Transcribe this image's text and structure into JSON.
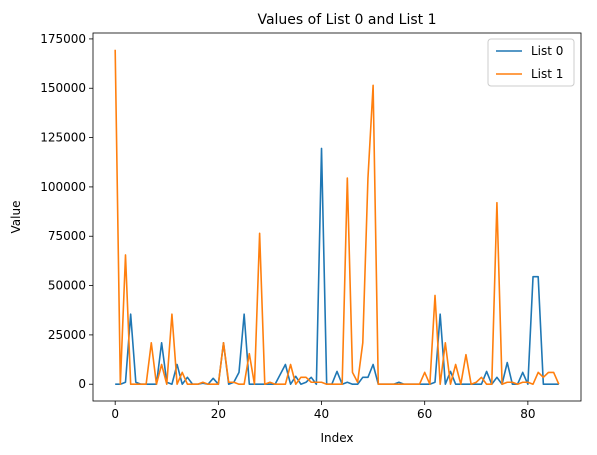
{
  "chart_data": {
    "type": "line",
    "title": "Values of List 0 and List 1",
    "xlabel": "Index",
    "ylabel": "Value",
    "xlim": [
      -4.3,
      90.3
    ],
    "ylim": [
      -8500,
      178000
    ],
    "xticks": [
      0,
      20,
      40,
      60,
      80
    ],
    "yticks": [
      0,
      25000,
      50000,
      75000,
      100000,
      125000,
      150000,
      175000
    ],
    "legend_position": "top-right",
    "grid": false,
    "series": [
      {
        "name": "List 0",
        "color": "#1f77b4",
        "values": [
          0,
          0,
          1000,
          35500,
          1000,
          0,
          0,
          0,
          0,
          21000,
          1000,
          0,
          10000,
          0,
          3500,
          0,
          0,
          500,
          0,
          3000,
          0,
          21000,
          0,
          1000,
          6000,
          35500,
          0,
          0,
          0,
          0,
          0,
          0,
          5000,
          10000,
          0,
          4000,
          0,
          1000,
          3500,
          0,
          119500,
          0,
          0,
          6500,
          0,
          1000,
          0,
          0,
          3500,
          3500,
          10000,
          0,
          0,
          0,
          0,
          1000,
          0,
          0,
          0,
          0,
          0,
          0,
          1000,
          35500,
          0,
          6500,
          0,
          0,
          0,
          0,
          0,
          0,
          6500,
          0,
          3500,
          0,
          11000,
          0,
          0,
          6000,
          0,
          54500,
          54500,
          0,
          0,
          0,
          0
        ]
      },
      {
        "name": "List 1",
        "color": "#ff7f0e",
        "values": [
          169500,
          0,
          65500,
          0,
          0,
          0,
          0,
          21000,
          0,
          10000,
          0,
          35500,
          0,
          6000,
          0,
          0,
          0,
          1000,
          0,
          0,
          0,
          21000,
          1000,
          1000,
          0,
          0,
          15500,
          0,
          76500,
          0,
          1000,
          0,
          0,
          0,
          10000,
          0,
          3500,
          3500,
          1000,
          1000,
          1000,
          0,
          0,
          0,
          0,
          104500,
          6000,
          1000,
          21000,
          104500,
          151500,
          0,
          0,
          0,
          0,
          0,
          0,
          0,
          0,
          0,
          6000,
          0,
          45000,
          0,
          21000,
          0,
          10000,
          0,
          15000,
          0,
          1000,
          3500,
          0,
          0,
          92000,
          0,
          1000,
          1000,
          0,
          1000,
          1000,
          0,
          6000,
          3500,
          6000,
          6000,
          0
        ]
      }
    ]
  }
}
